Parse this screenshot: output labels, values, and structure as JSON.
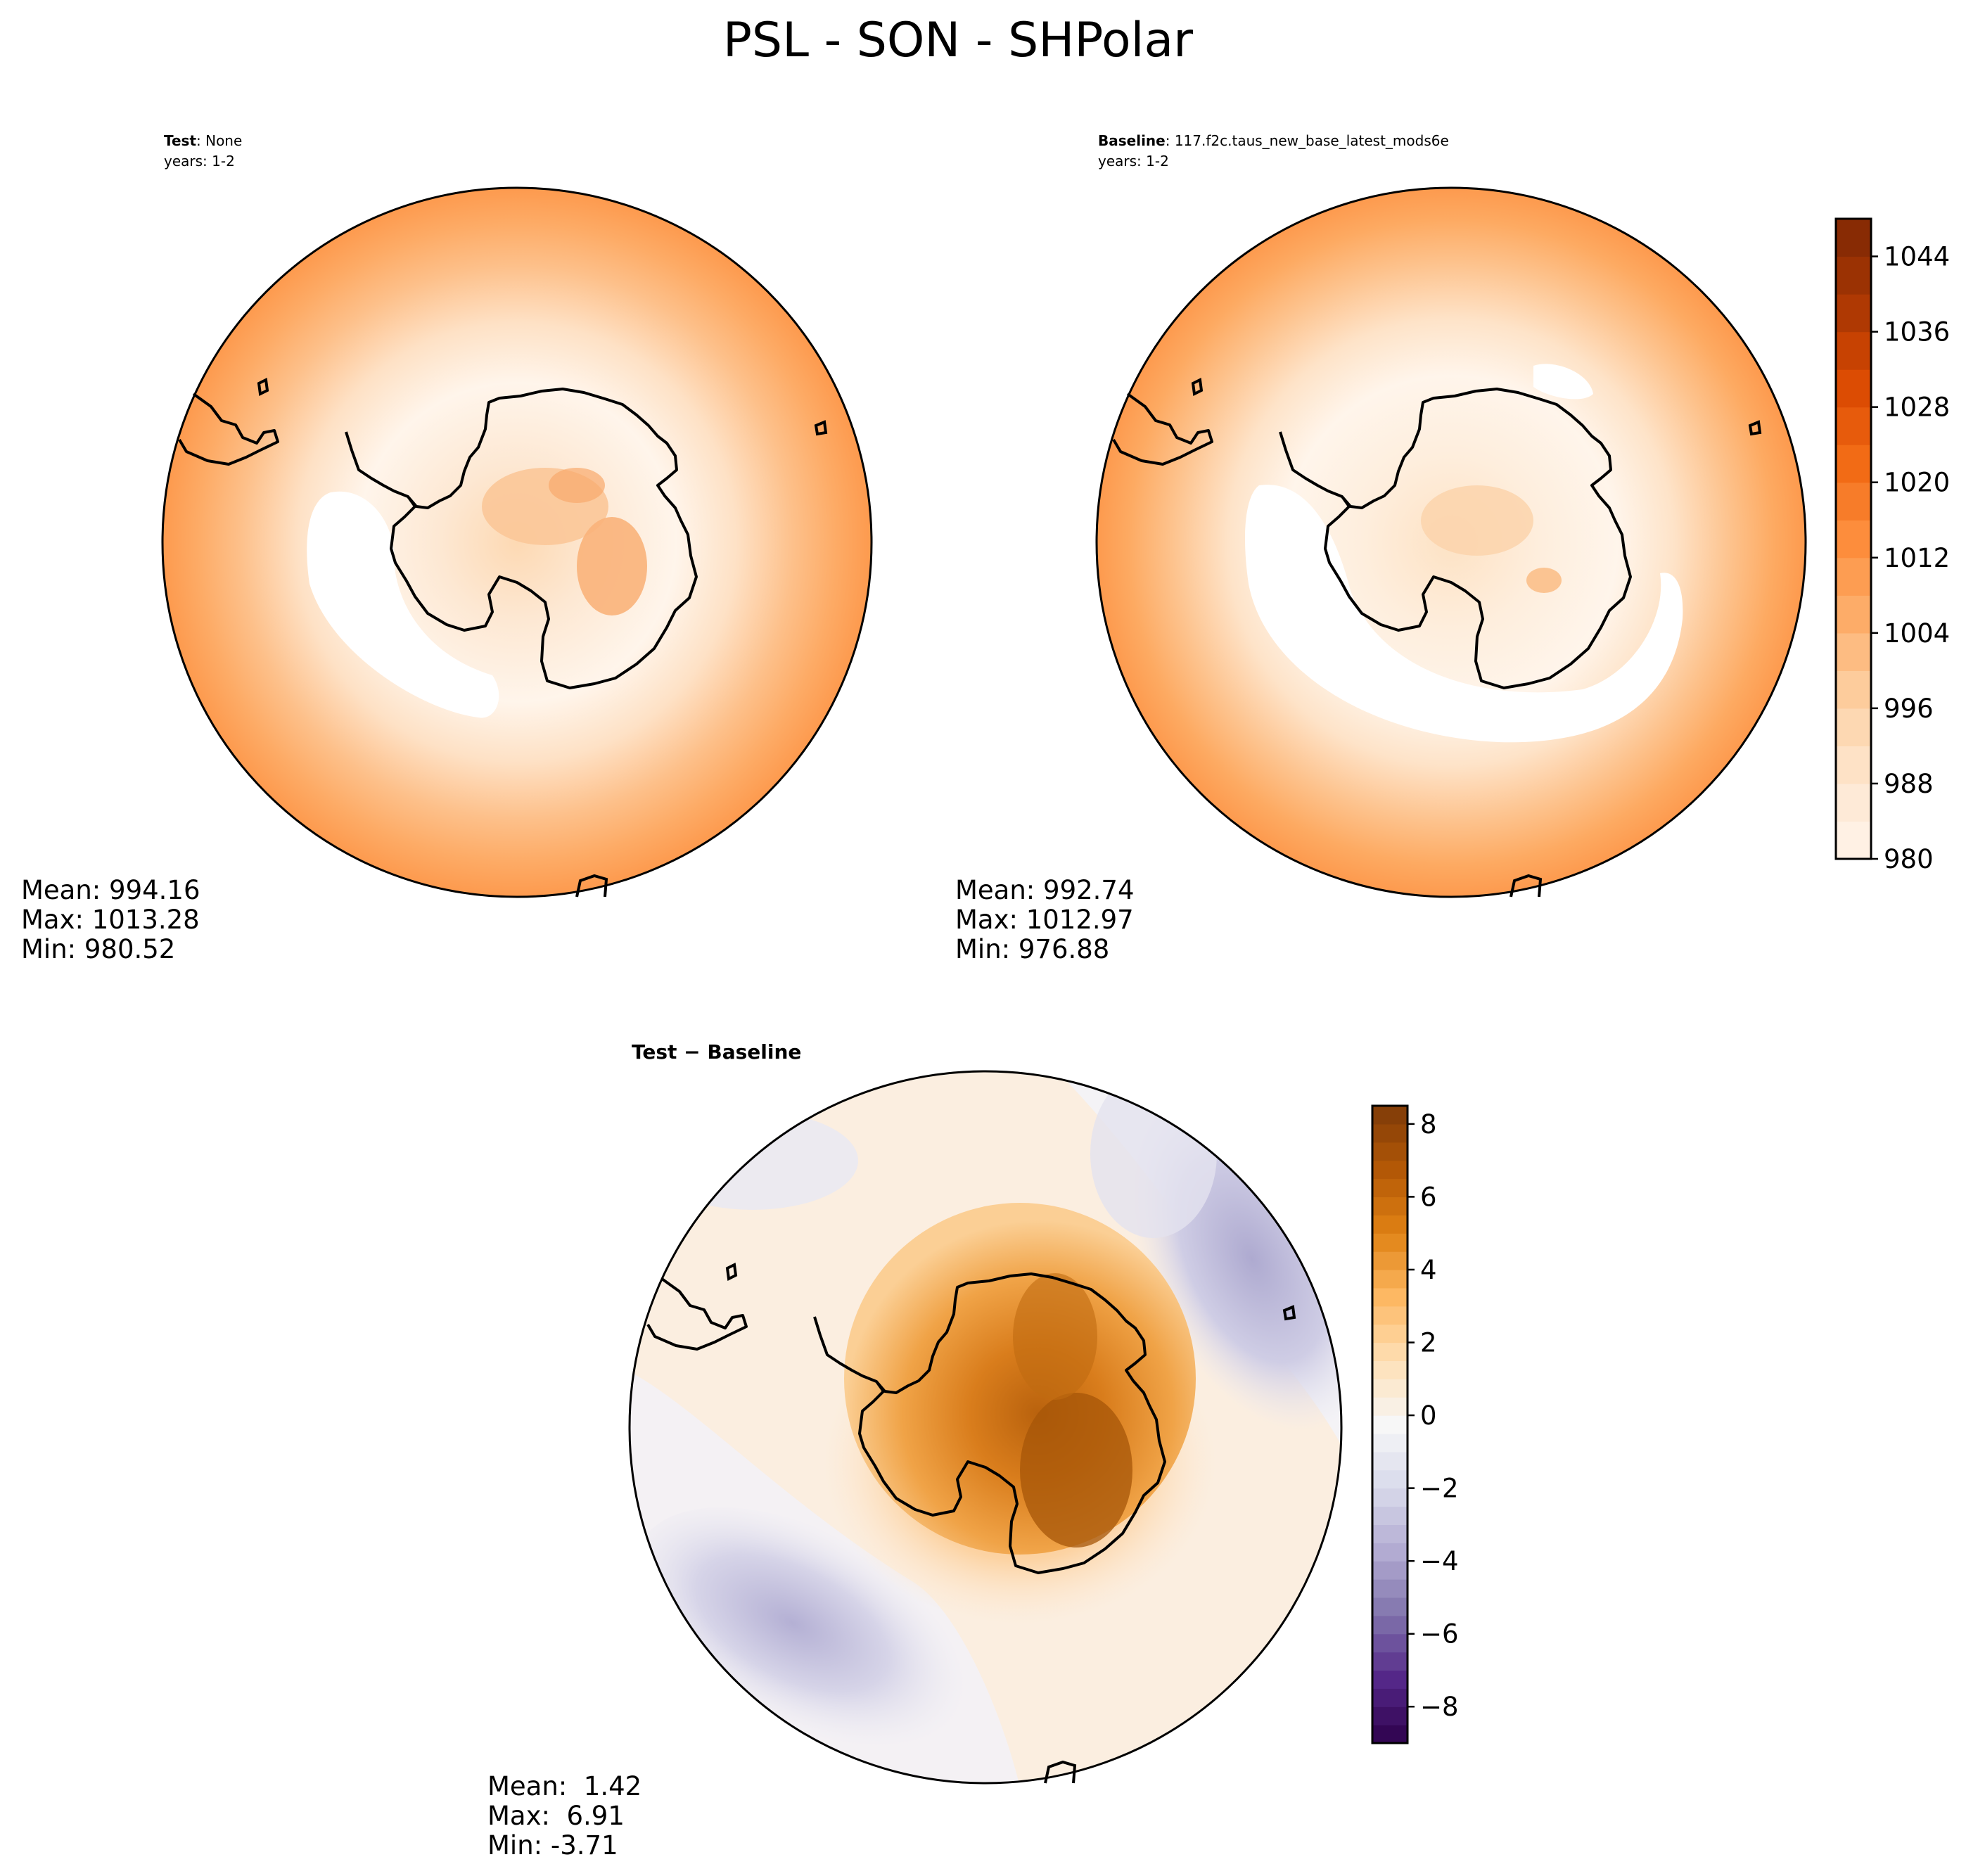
{
  "figure": {
    "title": "PSL - SON - SHPolar"
  },
  "chart_data": [
    {
      "type": "heatmap",
      "panel": "test",
      "projection": "south-polar-stereographic",
      "title_bold": "Test",
      "title_rest": ": None",
      "subtitle": "years: 1-2",
      "colormap": "Oranges",
      "colorbar": "shared-with-baseline",
      "stats": {
        "mean": "Mean: 994.16",
        "max": "Max: 1013.28",
        "min": "Min: 980.52"
      },
      "field_description": "zonal rings rising from ~981 hPa near the Antarctic trough to ~1013 hPa at 40S; interior ~995-1000",
      "levels": [
        980,
        1044
      ]
    },
    {
      "type": "heatmap",
      "panel": "baseline",
      "projection": "south-polar-stereographic",
      "title_bold": "Baseline",
      "title_rest": ": 117.f2c.taus_new_base_latest_mods6e",
      "subtitle": "years: 1-2",
      "colormap": "Oranges",
      "stats": {
        "mean": "Mean: 992.74",
        "max": "Max: 1012.97",
        "min": "Min: 976.88"
      },
      "colorbar": {
        "ticks": [
          "980",
          "988",
          "996",
          "1004",
          "1012",
          "1020",
          "1028",
          "1036",
          "1044"
        ],
        "tick_values": [
          980,
          988,
          996,
          1004,
          1012,
          1020,
          1028,
          1036,
          1044
        ],
        "range": [
          980,
          1048
        ],
        "bands": 17
      }
    },
    {
      "type": "heatmap",
      "panel": "difference",
      "projection": "south-polar-stereographic",
      "title": "Test − Baseline",
      "colormap": "PuOr_r",
      "stats": {
        "mean": "Mean:  1.42",
        "max": "Max:  6.91",
        "min": "Min: -3.71"
      },
      "colorbar": {
        "ticks": [
          "8",
          "6",
          "4",
          "2",
          "0",
          "−2",
          "−4",
          "−6",
          "−8"
        ],
        "tick_values": [
          8,
          6,
          4,
          2,
          0,
          -2,
          -4,
          -6,
          -8
        ],
        "range": [
          -9,
          8.5
        ]
      }
    }
  ],
  "colors": {
    "orange_scale": [
      "#fff5eb",
      "#fee6ce",
      "#fdd0a2",
      "#fdae6b",
      "#fd8d3c",
      "#f16913",
      "#d94801",
      "#a63603",
      "#7f2704"
    ],
    "puor_scale": [
      "#2d004b",
      "#542788",
      "#8073ac",
      "#b2abd2",
      "#d8daeb",
      "#f7f7f7",
      "#fee0b6",
      "#fdb863",
      "#e08214",
      "#b35806",
      "#7f3b08"
    ],
    "coast": "#000000"
  }
}
